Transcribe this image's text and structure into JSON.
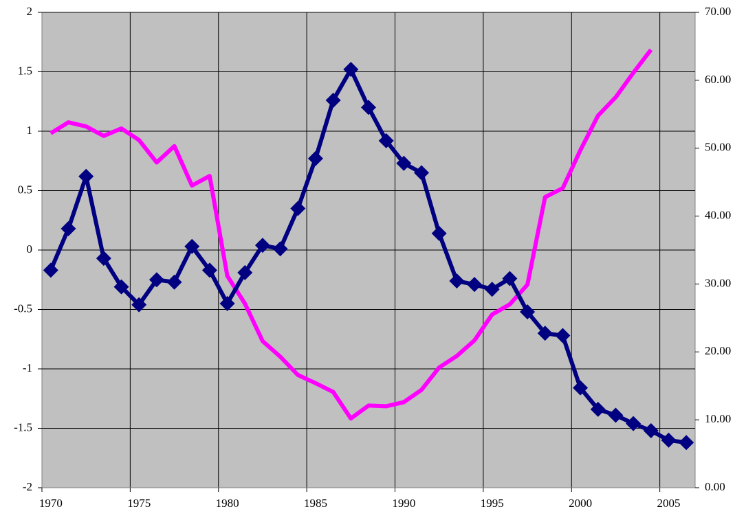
{
  "chart_data": {
    "type": "line",
    "categories": [
      "1970",
      null,
      null,
      null,
      null,
      "1975",
      null,
      null,
      null,
      null,
      "1980",
      null,
      null,
      null,
      null,
      "1985",
      null,
      null,
      null,
      null,
      "1990",
      null,
      null,
      null,
      null,
      "1995",
      null,
      null,
      null,
      null,
      "2000",
      null,
      null,
      null,
      null,
      "2005",
      null
    ],
    "series": [
      {
        "color": "#000080",
        "marker": "diamond",
        "values": [
          -0.17,
          0.18,
          0.62,
          -0.07,
          -0.31,
          -0.46,
          -0.25,
          -0.27,
          0.03,
          -0.17,
          -0.45,
          -0.19,
          0.04,
          0.01,
          0.35,
          0.77,
          1.26,
          1.52,
          1.2,
          0.92,
          0.73,
          0.65,
          0.14,
          -0.26,
          -0.29,
          -0.33,
          -0.24,
          -0.52,
          -0.7,
          -0.72,
          -1.16,
          -1.34,
          -1.39,
          -1.46,
          -1.52,
          -1.6,
          -1.62
        ]
      },
      {
        "color": "#ff00ff",
        "axis": "y2",
        "values": [
          52.2,
          53.8,
          53.2,
          51.8,
          52.9,
          51.2,
          47.9,
          50.3,
          44.5,
          45.9,
          31.2,
          27.1,
          21.6,
          19.3,
          16.6,
          15.4,
          14.1,
          10.2,
          12.1,
          12.0,
          12.6,
          14.4,
          17.7,
          19.4,
          21.7,
          25.5,
          27.0,
          29.9,
          42.8,
          44.1,
          49.7,
          54.8,
          57.5,
          61.1,
          64.5,
          null,
          null
        ]
      }
    ],
    "ylim": [
      -2,
      2
    ],
    "yticks": [
      -2,
      -1.5,
      -1,
      -0.5,
      0,
      0.5,
      1,
      1.5,
      2
    ],
    "y2lim": [
      0,
      70
    ],
    "y2ticks": [
      {
        "value": 0,
        "label": "0.00"
      },
      {
        "value": 10,
        "label": "10.00"
      },
      {
        "value": 20,
        "label": "20.00"
      },
      {
        "value": 30,
        "label": "30.00"
      },
      {
        "value": 40,
        "label": "40.00"
      },
      {
        "value": 50,
        "label": "50.00"
      },
      {
        "value": 60,
        "label": "60.00"
      },
      {
        "value": 70,
        "label": "70.00"
      }
    ],
    "grid": true,
    "background": "#c0c0c0"
  }
}
